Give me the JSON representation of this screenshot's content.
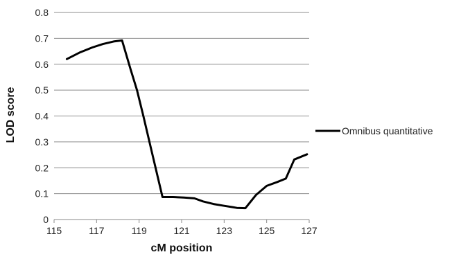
{
  "chart_data": {
    "type": "line",
    "title": "",
    "xlabel": "cM position",
    "ylabel": "LOD score",
    "xlim": [
      115,
      127
    ],
    "ylim": [
      0,
      0.8
    ],
    "x_ticks": [
      "115",
      "117",
      "119",
      "121",
      "123",
      "125",
      "127"
    ],
    "y_ticks": [
      "0",
      "0.1",
      "0.2",
      "0.3",
      "0.4",
      "0.5",
      "0.6",
      "0.7",
      "0.8"
    ],
    "grid": "horizontal",
    "legend_position": "right",
    "series": [
      {
        "name": "Omnibus quantitative",
        "color": "#000000",
        "x": [
          115.6,
          116.2,
          116.8,
          117.3,
          117.8,
          118.2,
          118.6,
          118.9,
          119.2,
          119.6,
          120.1,
          120.6,
          121.1,
          121.6,
          122.0,
          122.5,
          123.0,
          123.4,
          123.6,
          124.0,
          124.5,
          125.0,
          125.5,
          125.9,
          126.3,
          126.9
        ],
        "y": [
          0.62,
          0.645,
          0.665,
          0.678,
          0.688,
          0.692,
          0.58,
          0.5,
          0.4,
          0.26,
          0.087,
          0.087,
          0.085,
          0.082,
          0.07,
          0.06,
          0.053,
          0.048,
          0.045,
          0.044,
          0.095,
          0.13,
          0.145,
          0.158,
          0.232,
          0.252
        ]
      }
    ]
  }
}
